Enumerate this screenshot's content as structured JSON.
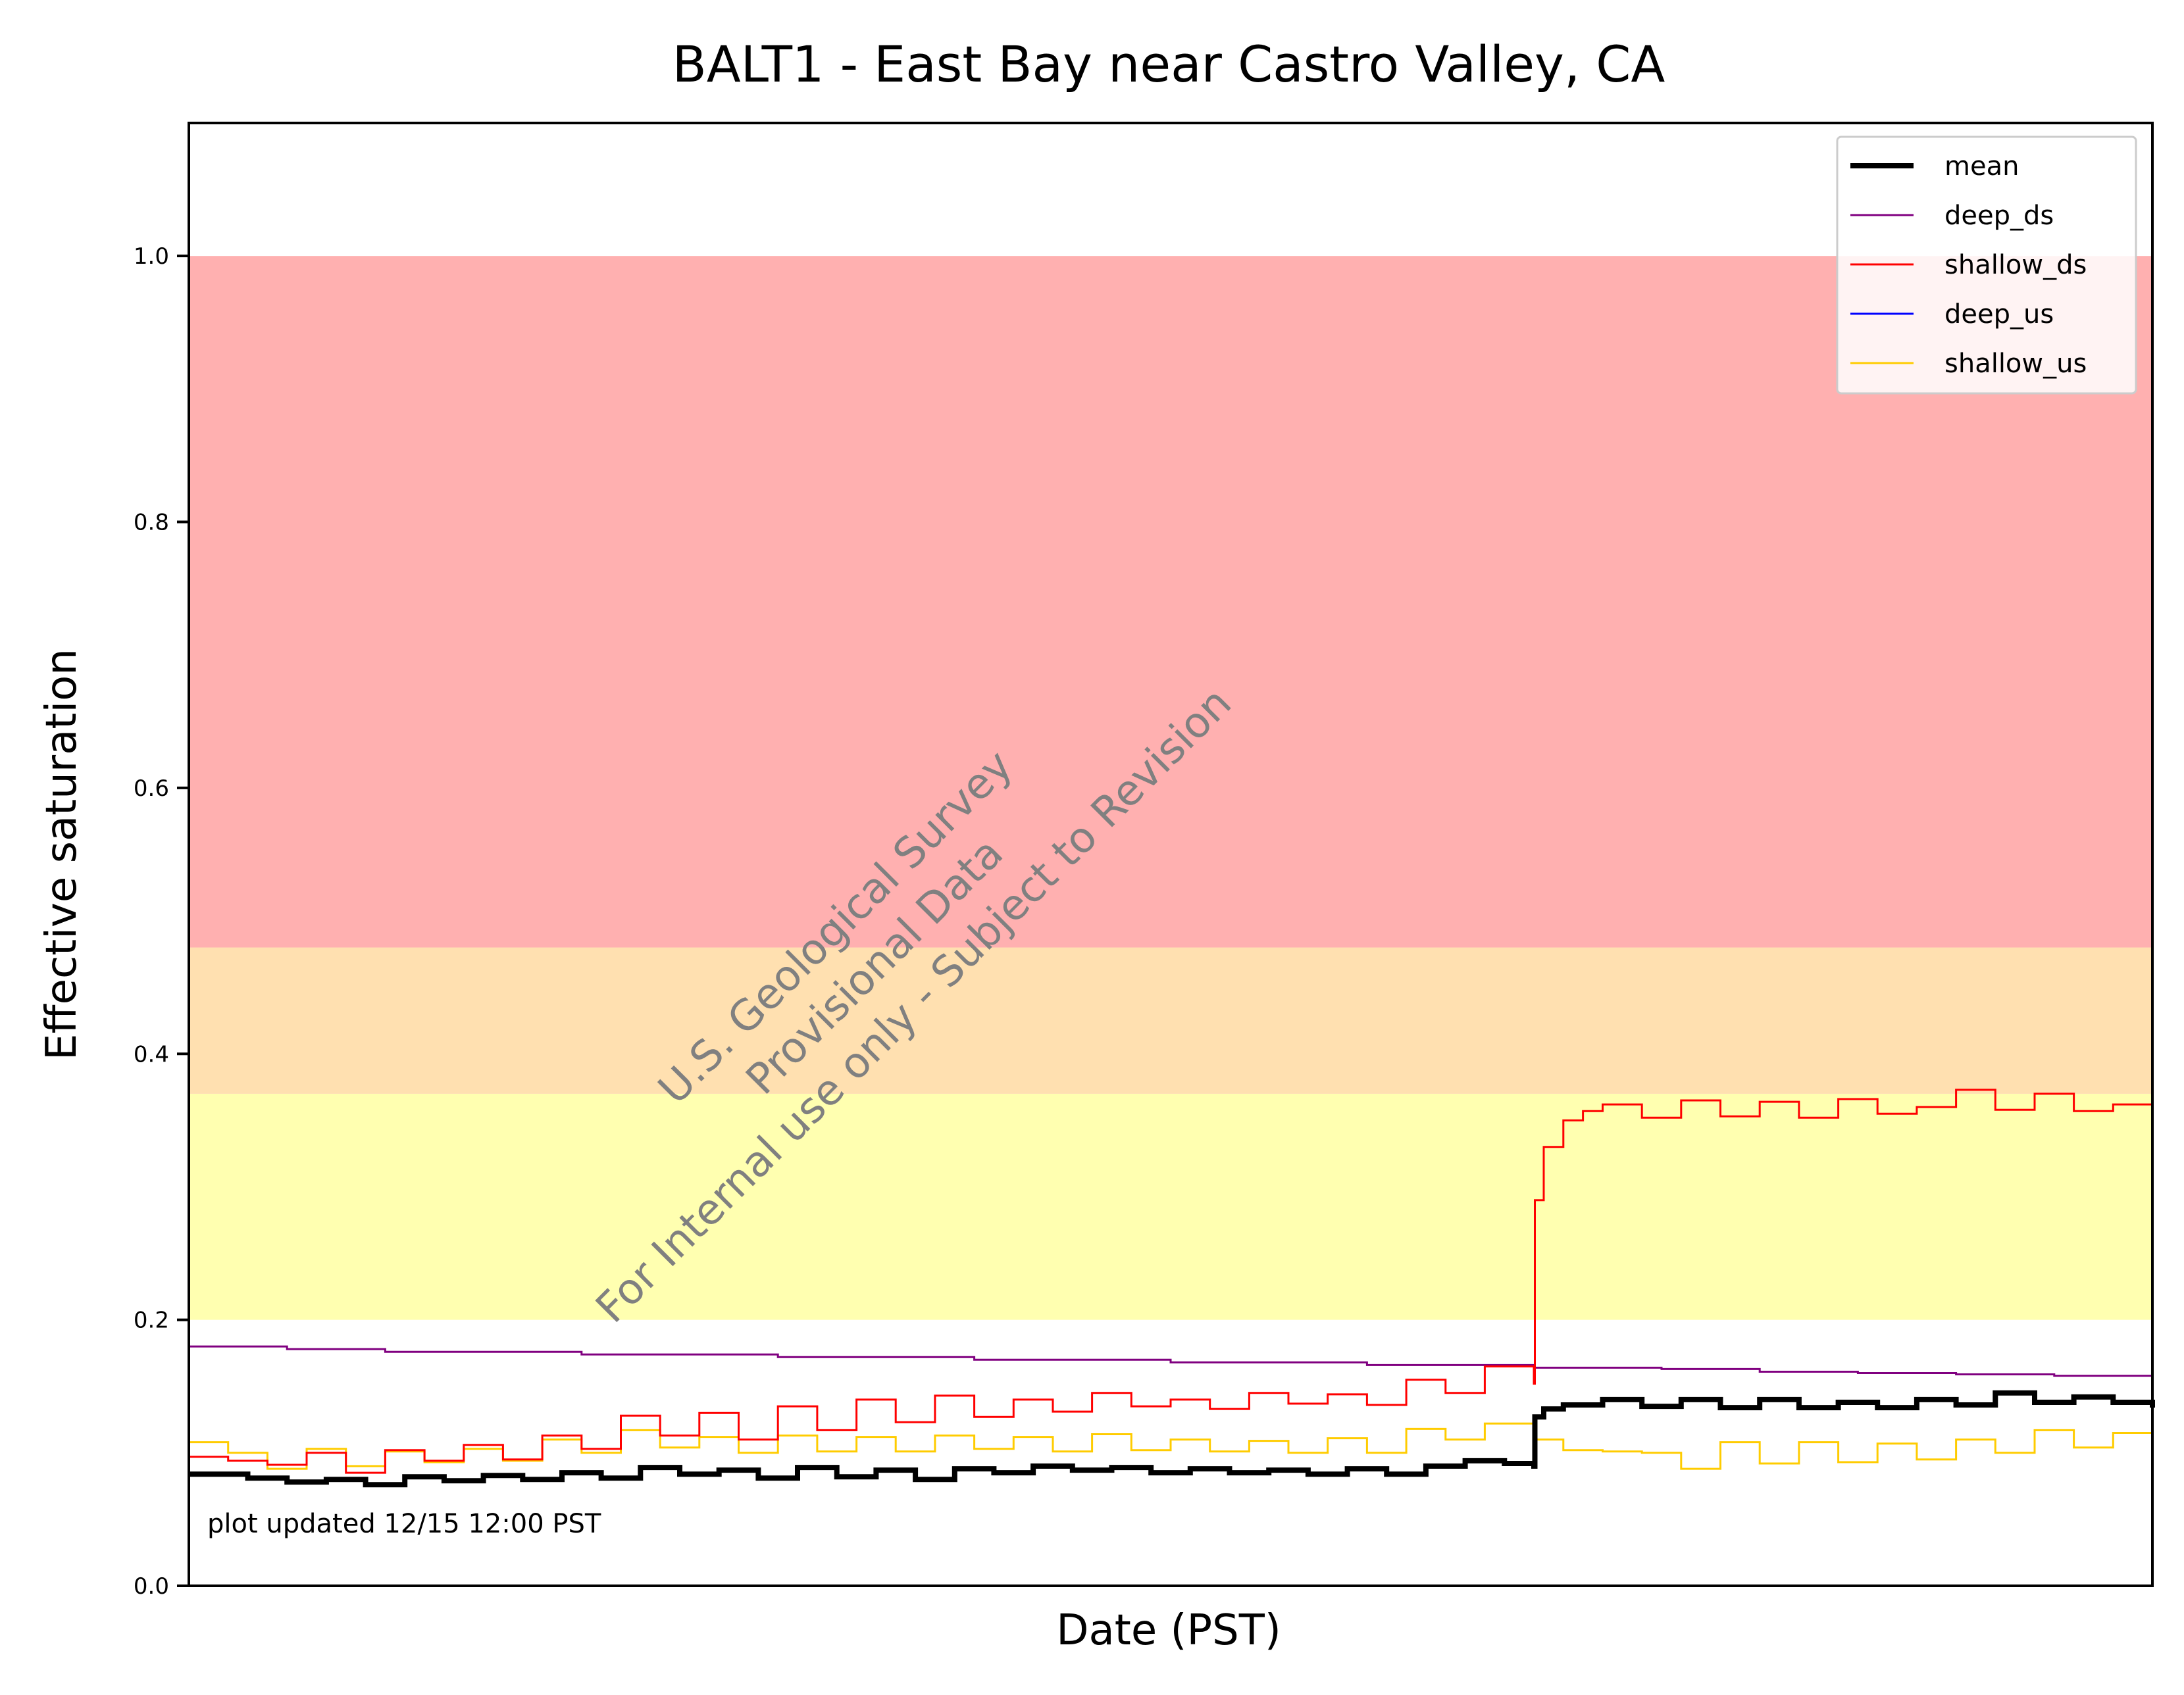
{
  "chart_data": {
    "type": "line",
    "title": "BALT1 - East Bay near Castro Valley, CA",
    "xlabel": "Date (PST)",
    "ylabel": "Effective saturation",
    "ylim": [
      0.0,
      1.1
    ],
    "yticks": [
      "0.0",
      "0.2",
      "0.4",
      "0.6",
      "0.8",
      "1.0"
    ],
    "x_tick_labels": [],
    "x_domain": [
      0,
      100
    ],
    "grid": false,
    "legend_position": "top-right",
    "bands": [
      {
        "from": 0.2,
        "to": 0.37,
        "color": "#ffffb0"
      },
      {
        "from": 0.37,
        "to": 0.48,
        "color": "#ffe0b0"
      },
      {
        "from": 0.48,
        "to": 1.0,
        "color": "#ffb0b0"
      }
    ],
    "series": [
      {
        "name": "mean",
        "color": "#000000",
        "width": 8,
        "x": [
          0,
          3,
          5,
          7,
          9,
          11,
          13,
          15,
          17,
          19,
          21,
          23,
          25,
          27,
          29,
          31,
          33,
          35,
          37,
          39,
          41,
          43,
          45,
          47,
          49,
          51,
          53,
          55,
          57,
          59,
          61,
          63,
          65,
          67,
          68.5,
          68.55,
          69,
          70,
          72,
          74,
          76,
          78,
          80,
          82,
          84,
          86,
          88,
          90,
          92,
          94,
          96,
          98,
          100
        ],
        "y": [
          0.084,
          0.081,
          0.078,
          0.08,
          0.076,
          0.082,
          0.079,
          0.083,
          0.08,
          0.085,
          0.081,
          0.089,
          0.084,
          0.087,
          0.081,
          0.089,
          0.082,
          0.087,
          0.08,
          0.088,
          0.085,
          0.09,
          0.087,
          0.089,
          0.085,
          0.088,
          0.085,
          0.087,
          0.084,
          0.088,
          0.084,
          0.09,
          0.094,
          0.092,
          0.09,
          0.127,
          0.133,
          0.136,
          0.14,
          0.135,
          0.14,
          0.134,
          0.14,
          0.134,
          0.138,
          0.134,
          0.14,
          0.136,
          0.145,
          0.138,
          0.142,
          0.138,
          0.134
        ]
      },
      {
        "name": "deep_ds",
        "color": "#800080",
        "width": 3,
        "x": [
          0,
          5,
          10,
          20,
          30,
          40,
          50,
          60,
          68.5,
          75,
          80,
          85,
          90,
          95,
          100
        ],
        "y": [
          0.18,
          0.178,
          0.176,
          0.174,
          0.172,
          0.17,
          0.168,
          0.166,
          0.164,
          0.163,
          0.161,
          0.16,
          0.159,
          0.158,
          0.157
        ]
      },
      {
        "name": "shallow_ds",
        "color": "#ff0000",
        "width": 3,
        "x": [
          0,
          2,
          4,
          6,
          8,
          10,
          12,
          14,
          16,
          18,
          20,
          22,
          24,
          26,
          28,
          30,
          32,
          34,
          36,
          38,
          40,
          42,
          44,
          46,
          48,
          50,
          52,
          54,
          56,
          58,
          60,
          62,
          64,
          66,
          68.5,
          68.55,
          69,
          70,
          71,
          72,
          74,
          76,
          78,
          80,
          82,
          84,
          86,
          88,
          90,
          92,
          94,
          96,
          98,
          100
        ],
        "y": [
          0.097,
          0.094,
          0.091,
          0.1,
          0.085,
          0.102,
          0.094,
          0.106,
          0.095,
          0.113,
          0.103,
          0.128,
          0.113,
          0.13,
          0.11,
          0.135,
          0.117,
          0.14,
          0.123,
          0.143,
          0.127,
          0.14,
          0.131,
          0.145,
          0.135,
          0.14,
          0.133,
          0.145,
          0.137,
          0.144,
          0.136,
          0.155,
          0.145,
          0.165,
          0.152,
          0.29,
          0.33,
          0.35,
          0.357,
          0.362,
          0.352,
          0.365,
          0.353,
          0.364,
          0.352,
          0.366,
          0.355,
          0.36,
          0.373,
          0.358,
          0.37,
          0.357,
          0.362,
          0.35
        ]
      },
      {
        "name": "deep_us",
        "color": "#0000ff",
        "width": 3,
        "x": [],
        "y": []
      },
      {
        "name": "shallow_us",
        "color": "#ffcc00",
        "width": 3,
        "x": [
          0,
          2,
          4,
          6,
          8,
          10,
          12,
          14,
          16,
          18,
          20,
          22,
          24,
          26,
          28,
          30,
          32,
          34,
          36,
          38,
          40,
          42,
          44,
          46,
          48,
          50,
          52,
          54,
          56,
          58,
          60,
          62,
          64,
          66,
          68.5,
          70,
          72,
          74,
          76,
          78,
          80,
          82,
          84,
          86,
          88,
          90,
          92,
          94,
          96,
          98,
          100
        ],
        "y": [
          0.108,
          0.1,
          0.088,
          0.103,
          0.09,
          0.101,
          0.093,
          0.103,
          0.094,
          0.11,
          0.1,
          0.117,
          0.104,
          0.112,
          0.1,
          0.113,
          0.101,
          0.112,
          0.101,
          0.113,
          0.103,
          0.112,
          0.101,
          0.114,
          0.102,
          0.11,
          0.101,
          0.109,
          0.1,
          0.111,
          0.1,
          0.118,
          0.11,
          0.122,
          0.11,
          0.102,
          0.101,
          0.1,
          0.088,
          0.108,
          0.092,
          0.108,
          0.093,
          0.107,
          0.095,
          0.11,
          0.1,
          0.117,
          0.104,
          0.115,
          0.1
        ]
      }
    ],
    "annotation": "plot updated 12/15 12:00  PST",
    "watermark_lines": [
      "U.S. Geological Survey",
      "Provisional Data",
      "For Internal use only - Subject to Revision"
    ]
  }
}
